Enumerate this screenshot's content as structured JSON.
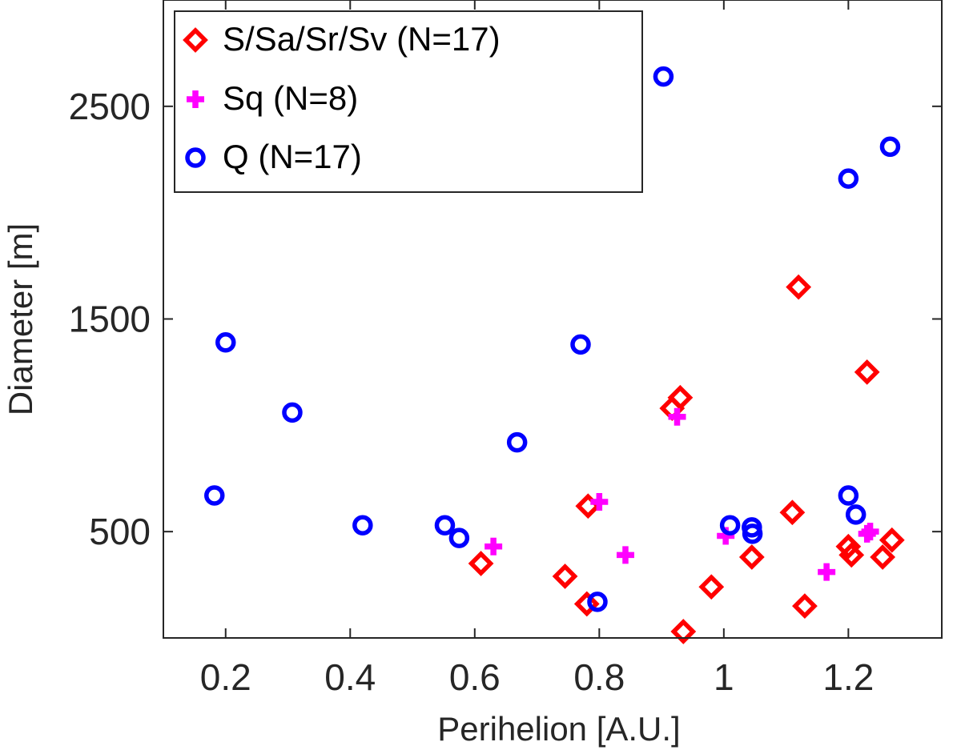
{
  "chart_data": {
    "type": "scatter",
    "title": "",
    "xlabel": "Perihelion [A.U.]",
    "ylabel": "Diameter [m]",
    "xlim": [
      0.1,
      1.35
    ],
    "ylim": [
      0,
      3000
    ],
    "xticks": [
      0.2,
      0.4,
      0.6,
      0.8,
      1.0,
      1.2
    ],
    "xtick_labels": [
      "0.2",
      "0.4",
      "0.6",
      "0.8",
      "1",
      "1.2"
    ],
    "yticks": [
      500,
      1500,
      2500
    ],
    "ytick_labels": [
      "500",
      "1500",
      "2500"
    ],
    "grid": false,
    "legend_position": "top-left",
    "series": [
      {
        "name": "S/Sa/Sr/Sv (N=17)",
        "marker": "diamond",
        "color": "#ff0000",
        "points": [
          [
            0.61,
            350
          ],
          [
            0.745,
            290
          ],
          [
            0.78,
            160
          ],
          [
            0.782,
            620
          ],
          [
            0.917,
            1080
          ],
          [
            0.93,
            1130
          ],
          [
            0.935,
            30
          ],
          [
            0.98,
            240
          ],
          [
            1.045,
            380
          ],
          [
            1.11,
            590
          ],
          [
            1.12,
            1650
          ],
          [
            1.13,
            150
          ],
          [
            1.2,
            430
          ],
          [
            1.205,
            390
          ],
          [
            1.23,
            1250
          ],
          [
            1.255,
            380
          ],
          [
            1.27,
            460
          ]
        ]
      },
      {
        "name": "Sq (N=8)",
        "marker": "plus",
        "color": "#ff00ff",
        "points": [
          [
            0.63,
            430
          ],
          [
            0.8,
            640
          ],
          [
            0.842,
            390
          ],
          [
            0.925,
            1040
          ],
          [
            1.003,
            480
          ],
          [
            1.165,
            310
          ],
          [
            1.23,
            490
          ],
          [
            1.235,
            500
          ]
        ]
      },
      {
        "name": "Q (N=17)",
        "marker": "circle",
        "color": "#0000ff",
        "points": [
          [
            0.182,
            670
          ],
          [
            0.2,
            1390
          ],
          [
            0.307,
            1060
          ],
          [
            0.42,
            530
          ],
          [
            0.552,
            530
          ],
          [
            0.575,
            470
          ],
          [
            0.668,
            920
          ],
          [
            0.77,
            1380
          ],
          [
            0.797,
            170
          ],
          [
            0.903,
            2640
          ],
          [
            1.01,
            530
          ],
          [
            1.045,
            520
          ],
          [
            1.046,
            490
          ],
          [
            1.2,
            2160
          ],
          [
            1.2,
            670
          ],
          [
            1.212,
            580
          ],
          [
            1.267,
            2310
          ]
        ]
      }
    ]
  }
}
